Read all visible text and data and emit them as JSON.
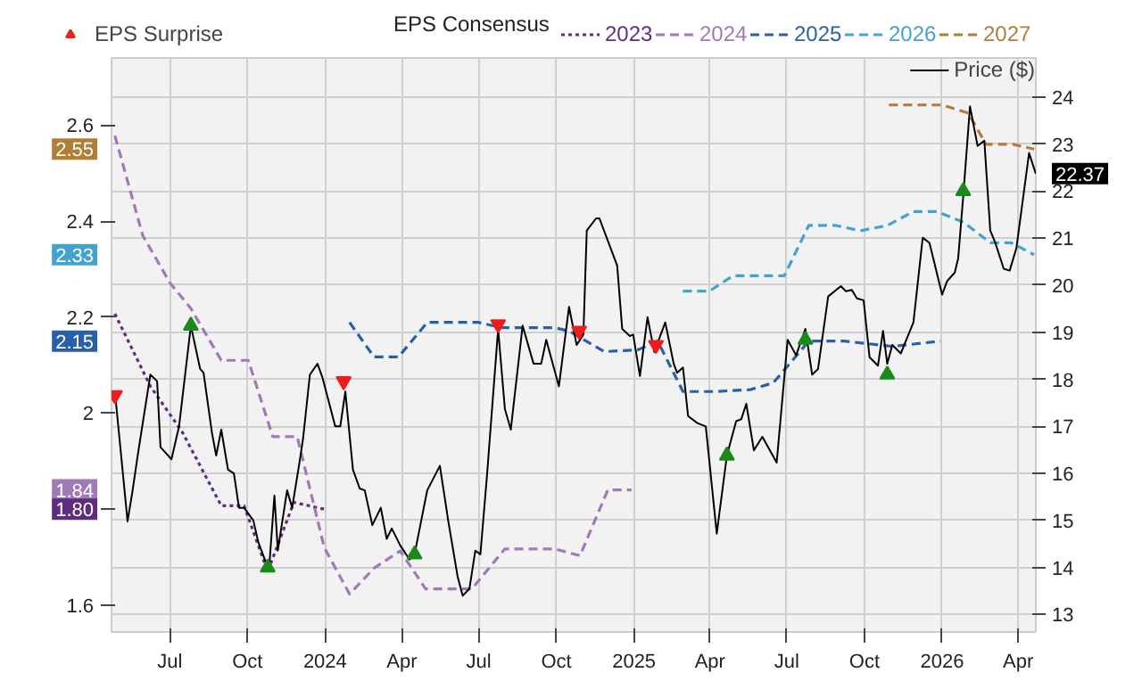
{
  "chart_data": {
    "type": "line",
    "xlim": [
      "2023-04-23",
      "2026-04-22"
    ],
    "xticks": [
      {
        "value": "2023-07-01",
        "label": "Jul"
      },
      {
        "value": "2023-10-01",
        "label": "Oct"
      },
      {
        "value": "2024-01-01",
        "label": "2024"
      },
      {
        "value": "2024-04-01",
        "label": "Apr"
      },
      {
        "value": "2024-07-01",
        "label": "Jul"
      },
      {
        "value": "2024-10-01",
        "label": "Oct"
      },
      {
        "value": "2025-01-01",
        "label": "2025"
      },
      {
        "value": "2025-04-01",
        "label": "Apr"
      },
      {
        "value": "2025-07-01",
        "label": "Jul"
      },
      {
        "value": "2025-10-01",
        "label": "Oct"
      },
      {
        "value": "2026-01-01",
        "label": "2026"
      },
      {
        "value": "2026-04-01",
        "label": "Apr"
      }
    ],
    "ylim": [
      1.544,
      2.74
    ],
    "yticks": [
      1.6,
      {
        "value": 1.8,
        "label": null
      },
      2,
      2.2,
      2.4,
      2.6,
      {
        "value": 2.55,
        "label": "2.55"
      },
      {
        "value": 2.33,
        "label": "2.33"
      },
      {
        "value": 2.15,
        "label": "2.15"
      },
      {
        "value": 1.84,
        "label": "1.84"
      },
      {
        "value": 1.8,
        "label": "1.80"
      }
    ],
    "y2lim": [
      12.63,
      24.83
    ],
    "y2ticks": [
      13,
      14,
      15,
      16,
      17,
      18,
      19,
      20,
      21,
      22,
      23,
      24,
      {
        "value": 22.37,
        "label": "22.37"
      }
    ],
    "grid": true,
    "legend": "top",
    "legend_title": "EPS Consensus",
    "series": [
      {
        "name": "2023",
        "color": "#5e2d7f",
        "line_style": "dotted",
        "x": [
          "2023-04-27",
          "2023-06-08",
          "2023-07-16",
          "2023-08-31",
          "2023-09-27",
          "2023-10-25",
          "2023-11-25",
          "2023-12-31"
        ],
        "values": [
          2.207,
          2.056,
          1.96,
          1.807,
          1.807,
          1.67,
          1.814,
          1.8
        ]
      },
      {
        "name": "2024",
        "color": "#a07ab8",
        "line_style": "dashed",
        "x": [
          "2023-04-27",
          "2023-05-30",
          "2023-07-01",
          "2023-07-26",
          "2023-08-31",
          "2023-10-02",
          "2023-10-31",
          "2023-11-29",
          "2023-12-31",
          "2024-01-30",
          "2024-02-28",
          "2024-03-30",
          "2024-04-29",
          "2024-06-23",
          "2024-08-01",
          "2024-09-29",
          "2024-10-29",
          "2024-12-01",
          "2024-12-29"
        ],
        "values": [
          2.578,
          2.37,
          2.272,
          2.218,
          2.11,
          2.11,
          1.951,
          1.951,
          1.72,
          1.623,
          1.677,
          1.713,
          1.634,
          1.634,
          1.717,
          1.717,
          1.703,
          1.84,
          1.84
        ]
      },
      {
        "name": "2025",
        "color": "#2760a8",
        "line_style": "dashed",
        "x": [
          "2024-01-30",
          "2024-02-28",
          "2024-03-28",
          "2024-05-01",
          "2024-07-01",
          "2024-07-28",
          "2024-09-29",
          "2024-10-16",
          "2024-11-27",
          "2025-01-06",
          "2025-01-29",
          "2025-02-28",
          "2025-04-07",
          "2025-05-19",
          "2025-06-15",
          "2025-07-27",
          "2025-09-07",
          "2025-11-03",
          "2025-12-30"
        ],
        "values": [
          2.189,
          2.117,
          2.117,
          2.189,
          2.189,
          2.178,
          2.178,
          2.171,
          2.128,
          2.132,
          2.15,
          2.045,
          2.045,
          2.049,
          2.063,
          2.15,
          2.15,
          2.139,
          2.15
        ]
      },
      {
        "name": "2026",
        "color": "#42a3cf",
        "line_style": "dashed",
        "x": [
          "2025-02-28",
          "2025-03-31",
          "2025-04-28",
          "2025-06-28",
          "2025-07-27",
          "2025-08-28",
          "2025-09-26",
          "2025-10-28",
          "2025-11-28",
          "2025-12-26",
          "2026-01-26",
          "2026-02-27",
          "2026-03-24",
          "2026-04-20"
        ],
        "values": [
          2.254,
          2.254,
          2.286,
          2.286,
          2.391,
          2.391,
          2.38,
          2.391,
          2.42,
          2.42,
          2.398,
          2.355,
          2.355,
          2.33
        ]
      },
      {
        "name": "2027",
        "color": "#b07f35",
        "line_style": "dashed",
        "x": [
          "2025-10-30",
          "2026-01-01",
          "2026-02-01",
          "2026-02-22",
          "2026-03-26",
          "2026-04-20"
        ],
        "values": [
          2.642,
          2.642,
          2.625,
          2.56,
          2.56,
          2.55
        ]
      },
      {
        "name": "Price ($)",
        "color": "#000000",
        "line_style": "solid",
        "axis": "y2",
        "x": [
          "2023-04-27",
          "2023-05-12",
          "2023-05-18",
          "2023-05-24",
          "2023-06-08",
          "2023-06-16",
          "2023-06-20",
          "2023-07-03",
          "2023-07-12",
          "2023-07-26",
          "2023-08-06",
          "2023-08-10",
          "2023-08-20",
          "2023-08-25",
          "2023-08-31",
          "2023-09-08",
          "2023-09-15",
          "2023-09-21",
          "2023-09-27",
          "2023-10-08",
          "2023-10-14",
          "2023-10-23",
          "2023-10-27",
          "2023-11-02",
          "2023-11-06",
          "2023-11-17",
          "2023-11-23",
          "2023-12-02",
          "2023-12-06",
          "2023-12-14",
          "2023-12-23",
          "2023-12-29",
          "2024-01-13",
          "2024-01-19",
          "2024-01-25",
          "2024-02-03",
          "2024-02-11",
          "2024-02-17",
          "2024-02-26",
          "2024-03-07",
          "2024-03-14",
          "2024-03-20",
          "2024-03-30",
          "2024-04-10",
          "2024-04-16",
          "2024-05-01",
          "2024-05-16",
          "2024-05-26",
          "2024-06-06",
          "2024-06-12",
          "2024-06-20",
          "2024-06-27",
          "2024-07-03",
          "2024-07-11",
          "2024-07-24",
          "2024-08-01",
          "2024-08-08",
          "2024-08-22",
          "2024-09-04",
          "2024-09-13",
          "2024-09-19",
          "2024-10-04",
          "2024-10-16",
          "2024-10-25",
          "2024-11-02",
          "2024-11-06",
          "2024-11-17",
          "2024-11-21",
          "2024-12-12",
          "2024-12-18",
          "2024-12-27",
          "2024-12-31",
          "2025-01-08",
          "2025-01-17",
          "2025-01-25",
          "2025-02-07",
          "2025-02-17",
          "2025-02-21",
          "2025-02-28",
          "2025-03-06",
          "2025-03-17",
          "2025-03-27",
          "2025-04-09",
          "2025-04-21",
          "2025-05-02",
          "2025-05-08",
          "2025-05-14",
          "2025-05-23",
          "2025-06-02",
          "2025-06-19",
          "2025-07-02",
          "2025-07-12",
          "2025-07-23",
          "2025-07-31",
          "2025-08-07",
          "2025-08-19",
          "2025-09-03",
          "2025-09-09",
          "2025-09-16",
          "2025-09-22",
          "2025-09-30",
          "2025-10-07",
          "2025-10-17",
          "2025-10-23",
          "2025-10-28",
          "2025-11-03",
          "2025-11-13",
          "2025-11-28",
          "2025-12-09",
          "2025-12-17",
          "2026-01-01",
          "2026-01-07",
          "2026-01-16",
          "2026-01-20",
          "2026-01-26",
          "2026-02-03",
          "2026-02-12",
          "2026-02-20",
          "2026-02-27",
          "2026-03-05",
          "2026-03-15",
          "2026-03-22",
          "2026-03-30",
          "2026-04-14",
          "2026-04-22"
        ],
        "values": [
          17.74,
          14.98,
          15.64,
          16.38,
          18.1,
          17.96,
          16.56,
          16.3,
          17.0,
          19.14,
          18.22,
          18.14,
          16.86,
          16.38,
          16.93,
          16.08,
          16.0,
          15.27,
          15.27,
          15.0,
          14.53,
          14.1,
          14.06,
          15.53,
          14.36,
          15.64,
          15.27,
          16.27,
          16.75,
          18.1,
          18.33,
          18.03,
          17.0,
          17.0,
          17.74,
          16.08,
          15.68,
          15.64,
          14.9,
          15.27,
          14.61,
          14.83,
          14.47,
          14.17,
          14.28,
          15.64,
          16.16,
          14.98,
          13.81,
          13.4,
          13.55,
          14.36,
          14.28,
          16.0,
          19.07,
          17.37,
          16.93,
          19.14,
          18.33,
          18.33,
          18.84,
          17.85,
          19.54,
          18.73,
          18.95,
          21.16,
          21.42,
          21.42,
          20.42,
          19.07,
          18.92,
          18.95,
          18.07,
          19.32,
          18.58,
          19.21,
          18.33,
          18.14,
          18.25,
          17.22,
          17.07,
          17.0,
          14.72,
          16.38,
          17.11,
          17.15,
          17.48,
          16.49,
          16.78,
          16.23,
          18.84,
          18.51,
          19.07,
          18.1,
          18.22,
          19.76,
          19.98,
          19.87,
          19.9,
          19.72,
          19.68,
          18.47,
          18.29,
          19.03,
          18.33,
          18.73,
          18.55,
          19.21,
          21.01,
          20.9,
          19.8,
          20.09,
          20.27,
          20.57,
          21.89,
          23.8,
          22.96,
          23.07,
          21.16,
          20.9,
          20.35,
          20.31,
          20.79,
          22.81,
          22.37
        ]
      },
      {
        "name": "EPS Surprise",
        "type": "scatter",
        "marker": "triangle",
        "axis": "y2",
        "color": "#1a8a1a",
        "x": [
          "2023-07-26",
          "2023-10-25",
          "2024-04-16",
          "2025-04-21",
          "2025-07-23",
          "2025-10-28",
          "2026-01-26"
        ],
        "values": [
          19.14,
          14.0,
          14.28,
          16.38,
          18.84,
          18.1,
          22.0
        ]
      },
      {
        "type": "scatter",
        "marker": "triangle",
        "axis": "y2",
        "color": "#ee1c1c",
        "x": [
          "2023-04-27",
          "2024-01-23",
          "2024-07-24",
          "2024-10-28",
          "2025-01-27"
        ],
        "values": [
          17.66,
          17.96,
          19.17,
          19.03,
          18.73
        ]
      }
    ]
  }
}
